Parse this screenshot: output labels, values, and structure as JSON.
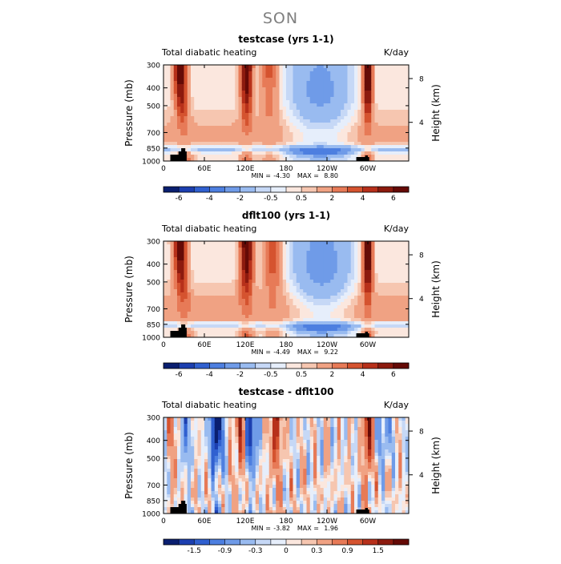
{
  "figure": {
    "title": "SON"
  },
  "chart_data": [
    {
      "type": "heatmap",
      "title": "testcase (yrs 1-1)",
      "left_label": "Total diabatic heating",
      "units": "K/day",
      "ylabel": "Pressure (mb)",
      "ylabel_right": "Height (km)",
      "yticks": [
        "300",
        "400",
        "500",
        "700",
        "850",
        "1000"
      ],
      "yticks_right": [
        "8",
        "4"
      ],
      "xticks": [
        "0",
        "60E",
        "120E",
        "180",
        "120W",
        "60W"
      ],
      "stats": {
        "min_label": "MIN =",
        "min": "-4.30",
        "max_label": "MAX =",
        "max": "8.80"
      },
      "colorbar_labels": [
        "-6",
        "-4",
        "-2",
        "-0.5",
        "0.5",
        "2",
        "4",
        "6"
      ],
      "colors": [
        "#0a1f70",
        "#1c3fb0",
        "#3060d0",
        "#4d7fe0",
        "#6f9be8",
        "#99bbf0",
        "#c6d8f6",
        "#e6eefb",
        "#fbe7de",
        "#f6c6b0",
        "#f0a283",
        "#e77a57",
        "#d5532f",
        "#b7301a",
        "#8c1a0e",
        "#650a06"
      ],
      "levels": [
        -7,
        -6,
        -5,
        -4,
        -3,
        -2,
        -1,
        -0.5,
        0,
        0.5,
        1,
        2,
        3,
        4,
        5,
        6,
        7
      ],
      "bands": [
        {
          "lon": 28,
          "width": 10,
          "amp": 6.5
        },
        {
          "lon": 122,
          "width": 9,
          "amp": 6.8
        },
        {
          "lon": 155,
          "width": 12,
          "amp": 3.0
        },
        {
          "lon": 300,
          "width": 7,
          "amp": 7.5
        }
      ],
      "cold_region": {
        "lon_min": 170,
        "lon_max": 290,
        "amp": 2.2
      },
      "warm_background": 1.2
    },
    {
      "type": "heatmap",
      "title": "dflt100 (yrs 1-1)",
      "left_label": "Total diabatic heating",
      "units": "K/day",
      "ylabel": "Pressure (mb)",
      "ylabel_right": "Height (km)",
      "yticks": [
        "300",
        "400",
        "500",
        "700",
        "850",
        "1000"
      ],
      "yticks_right": [
        "8",
        "4"
      ],
      "xticks": [
        "0",
        "60E",
        "120E",
        "180",
        "120W",
        "60W"
      ],
      "stats": {
        "min_label": "MIN =",
        "min": "-4.49",
        "max_label": "MAX =",
        "max": "9.22"
      },
      "colorbar_labels": [
        "-6",
        "-4",
        "-2",
        "-0.5",
        "0.5",
        "2",
        "4",
        "6"
      ],
      "colors": [
        "#0a1f70",
        "#1c3fb0",
        "#3060d0",
        "#4d7fe0",
        "#6f9be8",
        "#99bbf0",
        "#c6d8f6",
        "#e6eefb",
        "#fbe7de",
        "#f6c6b0",
        "#f0a283",
        "#e77a57",
        "#d5532f",
        "#b7301a",
        "#8c1a0e",
        "#650a06"
      ],
      "levels": [
        -7,
        -6,
        -5,
        -4,
        -3,
        -2,
        -1,
        -0.5,
        0,
        0.5,
        1,
        2,
        3,
        4,
        5,
        6,
        7
      ],
      "bands": [
        {
          "lon": 28,
          "width": 10,
          "amp": 6.5
        },
        {
          "lon": 122,
          "width": 10,
          "amp": 6.9
        },
        {
          "lon": 160,
          "width": 12,
          "amp": 3.5
        },
        {
          "lon": 300,
          "width": 7,
          "amp": 7.8
        }
      ],
      "cold_region": {
        "lon_min": 175,
        "lon_max": 290,
        "amp": 2.4
      },
      "warm_background": 1.5
    },
    {
      "type": "heatmap",
      "title": "testcase - dflt100",
      "left_label": "Total diabatic heating",
      "units": "K/day",
      "ylabel": "Pressure (mb)",
      "ylabel_right": "Height (km)",
      "yticks": [
        "300",
        "400",
        "500",
        "700",
        "850",
        "1000"
      ],
      "yticks_right": [
        "8",
        "4"
      ],
      "xticks": [
        "0",
        "60E",
        "120E",
        "180",
        "120W",
        "60W"
      ],
      "stats": {
        "min_label": "MIN =",
        "min": "-3.82",
        "max_label": "MAX =",
        "max": "1.96"
      },
      "colorbar_labels": [
        "-1.5",
        "-0.9",
        "-0.3",
        "0",
        "0.3",
        "0.9",
        "1.5"
      ],
      "colors": [
        "#0a1f70",
        "#1c3fb0",
        "#3060d0",
        "#4d7fe0",
        "#6f9be8",
        "#99bbf0",
        "#c6d8f6",
        "#e6eefb",
        "#fbe7de",
        "#f6c6b0",
        "#f0a283",
        "#e77a57",
        "#d5532f",
        "#b7301a",
        "#8c1a0e",
        "#650a06"
      ],
      "levels": [
        -2.1,
        -1.8,
        -1.5,
        -1.2,
        -0.9,
        -0.6,
        -0.3,
        -0.15,
        0,
        0.15,
        0.3,
        0.6,
        0.9,
        1.2,
        1.5,
        1.8,
        2.1
      ],
      "bands": [
        {
          "lon": 18,
          "width": 5,
          "amp": 0.8
        },
        {
          "lon": 35,
          "width": 6,
          "amp": -1.2
        },
        {
          "lon": 78,
          "width": 9,
          "amp": -2.2
        },
        {
          "lon": 110,
          "width": 6,
          "amp": 1.2
        },
        {
          "lon": 130,
          "width": 8,
          "amp": -1.6
        },
        {
          "lon": 165,
          "width": 8,
          "amp": 1.3
        },
        {
          "lon": 300,
          "width": 6,
          "amp": 1.8
        },
        {
          "lon": 325,
          "width": 10,
          "amp": -0.8
        }
      ],
      "noise_amp": 0.55,
      "warm_background": 0.1
    }
  ]
}
